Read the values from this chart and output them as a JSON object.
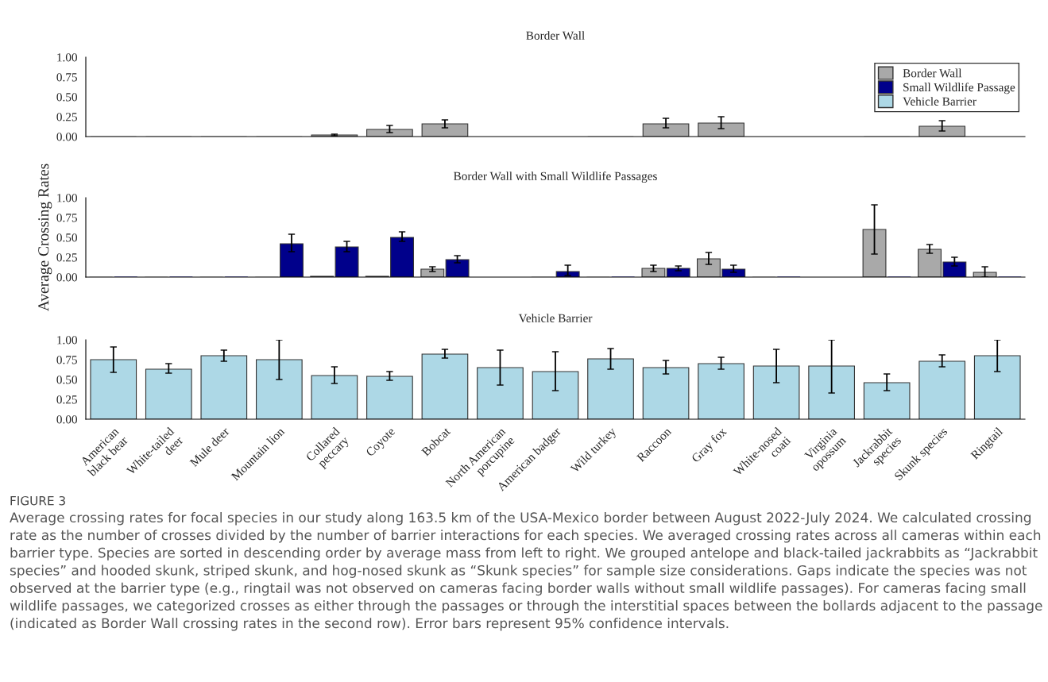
{
  "chart_data": [
    {
      "type": "bar",
      "title": "Border Wall",
      "categories": [
        null,
        null,
        null,
        null,
        null,
        null,
        null,
        null,
        null,
        null,
        null,
        null,
        null,
        null,
        null,
        null,
        null
      ],
      "series": [
        {
          "name": "Border Wall",
          "color": "#a9a9a9",
          "values": [
            0,
            0,
            0,
            0,
            0.02,
            0.09,
            0.16,
            null,
            null,
            0,
            0.16,
            0.17,
            null,
            null,
            0,
            0.13,
            null
          ],
          "errors": [
            null,
            null,
            null,
            null,
            [
              0.01,
              0.03
            ],
            [
              0.05,
              0.14
            ],
            [
              0.11,
              0.21
            ],
            null,
            null,
            null,
            [
              0.11,
              0.23
            ],
            [
              0.1,
              0.25
            ],
            null,
            null,
            null,
            [
              0.07,
              0.2
            ],
            null
          ]
        }
      ],
      "ylim": [
        0,
        1
      ],
      "yticks": [
        {
          "value": 0,
          "label": "0.00"
        },
        {
          "value": 0.25,
          "label": "0.25"
        },
        {
          "value": 0.5,
          "label": "0.50"
        },
        {
          "value": 0.75,
          "label": "0.75"
        },
        {
          "value": 1,
          "label": "1.00"
        }
      ],
      "tick_labels": "y",
      "legend": "top right",
      "grid": false
    },
    {
      "type": "bar",
      "title": "Border Wall with Small Wildlife Passages",
      "ylabel": "Average Crossing Rates",
      "categories": [
        null,
        null,
        null,
        null,
        null,
        null,
        null,
        null,
        null,
        null,
        null,
        null,
        null,
        null,
        null,
        null,
        null
      ],
      "series": [
        {
          "color": "#a9a9a9",
          "values": [
            0,
            0,
            0,
            0,
            0.01,
            0.01,
            0.1,
            null,
            0,
            0,
            0.11,
            0.23,
            0,
            null,
            0.6,
            0.35,
            0.06
          ],
          "errors": [
            null,
            null,
            null,
            null,
            null,
            null,
            [
              0.07,
              0.13
            ],
            null,
            null,
            null,
            [
              0.07,
              0.15
            ],
            [
              0.16,
              0.31
            ],
            null,
            null,
            [
              0.29,
              0.91
            ],
            [
              0.3,
              0.41
            ],
            [
              0,
              0.13
            ]
          ]
        },
        {
          "name": "Small Wildlife Passage",
          "color": "#00008b",
          "values": [
            0,
            0,
            0,
            0.42,
            0.38,
            0.5,
            0.22,
            null,
            0.07,
            0,
            0.11,
            0.1,
            0,
            null,
            0,
            0.19,
            0
          ],
          "errors": [
            null,
            null,
            null,
            [
              0.32,
              0.54
            ],
            [
              0.32,
              0.45
            ],
            [
              0.45,
              0.57
            ],
            [
              0.18,
              0.27
            ],
            null,
            [
              0.02,
              0.15
            ],
            null,
            [
              0.08,
              0.14
            ],
            [
              0.06,
              0.15
            ],
            null,
            null,
            null,
            [
              0.14,
              0.25
            ],
            null
          ]
        }
      ],
      "ylim": [
        0,
        1
      ],
      "yticks": [
        {
          "value": 0,
          "label": "0.00"
        },
        {
          "value": 0.25,
          "label": "0.25"
        },
        {
          "value": 0.5,
          "label": "0.50"
        },
        {
          "value": 0.75,
          "label": "0.75"
        },
        {
          "value": 1,
          "label": "1.00"
        }
      ],
      "tick_labels": "y",
      "grid": false
    },
    {
      "type": "bar",
      "title": "Vehicle Barrier",
      "categories": [
        "American\nblack bear",
        "White-tailed\ndeer",
        "Mule deer",
        "Mountain lion",
        "Collared\npeccary",
        "Coyote",
        "Bobcat",
        "North American\nporcupine",
        "American badger",
        "Wild turkey",
        "Raccoon",
        "Gray fox",
        "White-nosed\ncoati",
        "Virginia\nopossum",
        "Jackrabbit\nspecies",
        "Skunk species",
        "Ringtail"
      ],
      "series": [
        {
          "name": "Vehicle Barrier",
          "color": "#add8e6",
          "values": [
            0.75,
            0.63,
            0.8,
            0.75,
            0.55,
            0.54,
            0.82,
            0.65,
            0.6,
            0.76,
            0.65,
            0.7,
            0.67,
            0.67,
            0.46,
            0.73,
            0.8
          ],
          "errors": [
            [
              0.59,
              0.91
            ],
            [
              0.58,
              0.7
            ],
            [
              0.73,
              0.87
            ],
            [
              0.5,
              1.0
            ],
            [
              0.45,
              0.66
            ],
            [
              0.49,
              0.6
            ],
            [
              0.77,
              0.88
            ],
            [
              0.43,
              0.87
            ],
            [
              0.36,
              0.85
            ],
            [
              0.63,
              0.89
            ],
            [
              0.57,
              0.74
            ],
            [
              0.63,
              0.78
            ],
            [
              0.46,
              0.88
            ],
            [
              0.33,
              1.0
            ],
            [
              0.36,
              0.57
            ],
            [
              0.66,
              0.81
            ],
            [
              0.6,
              1.0
            ]
          ]
        }
      ],
      "ylim": [
        0,
        1
      ],
      "yticks": [
        {
          "value": 0,
          "label": "0.00"
        },
        {
          "value": 0.25,
          "label": "0.25"
        },
        {
          "value": 0.5,
          "label": "0.50"
        },
        {
          "value": 0.75,
          "label": "0.75"
        },
        {
          "value": 1,
          "label": "1.00"
        }
      ],
      "grid": false,
      "annotations": [
        "FIGURE 3",
        "Average crossing rates for focal species in our study along 163.5 km of the USA-Mexico border between August 2022-July 2024. We calculated crossing rate as the number of crosses divided by the number of barrier interactions for each species. We averaged crossing rates across all cameras within each barrier type. Species are sorted in descending order by average mass from left to right. We grouped antelope and black-tailed jackrabbits as “Jackrabbit species” and hooded skunk, striped skunk, and hog-nosed skunk as “Skunk species” for sample size considerations. Gaps indicate the species was not observed at the barrier type (e.g., ringtail was not observed on cameras facing border walls without small wildlife passages). For cameras facing small wildlife passages, we categorized crosses as either through the passages or through the interstitial spaces between the bollards adjacent to the passage (indicated as Border Wall crossing rates in the second row). Error bars represent 95% confidence intervals."
      ]
    }
  ]
}
